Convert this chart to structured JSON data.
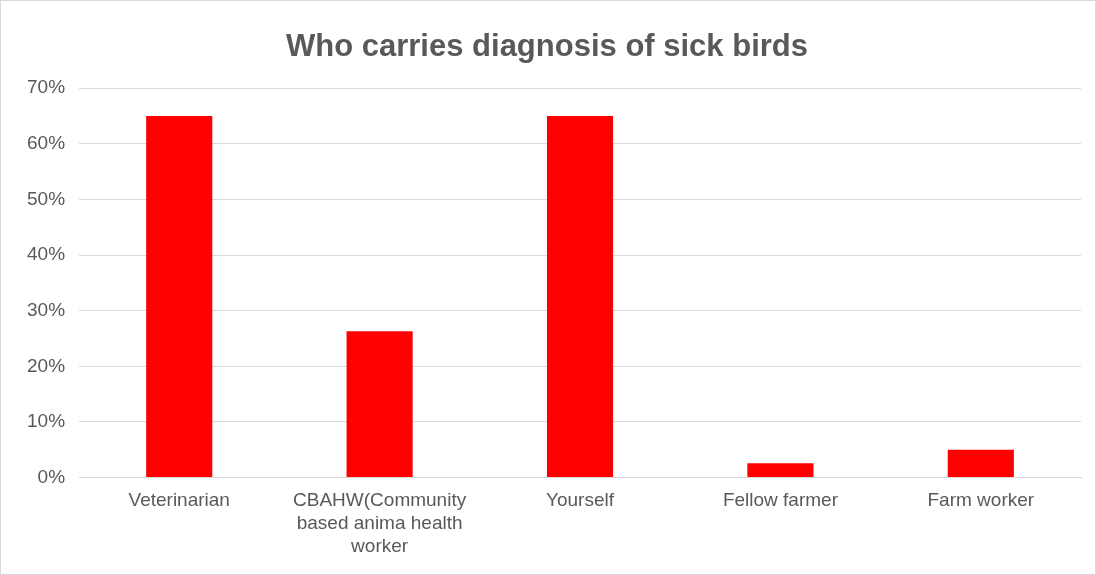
{
  "chart_data": {
    "type": "bar",
    "title": "Who carries diagnosis of sick birds",
    "categories": [
      "Veterinarian",
      "CBAHW(Community based anima health worker",
      "Yourself",
      "Fellow farmer",
      "Farm worker"
    ],
    "values": [
      65,
      26.3,
      65,
      2.6,
      5
    ],
    "color": "#ff0000",
    "ylim": [
      0,
      70
    ],
    "yticks": [
      {
        "value": 0,
        "label": "0%"
      },
      {
        "value": 10,
        "label": "10%"
      },
      {
        "value": 20,
        "label": "20%"
      },
      {
        "value": 30,
        "label": "30%"
      },
      {
        "value": 40,
        "label": "40%"
      },
      {
        "value": 50,
        "label": "50%"
      },
      {
        "value": 60,
        "label": "60%"
      },
      {
        "value": 70,
        "label": "70%"
      }
    ],
    "grid": "y",
    "legend": false
  }
}
